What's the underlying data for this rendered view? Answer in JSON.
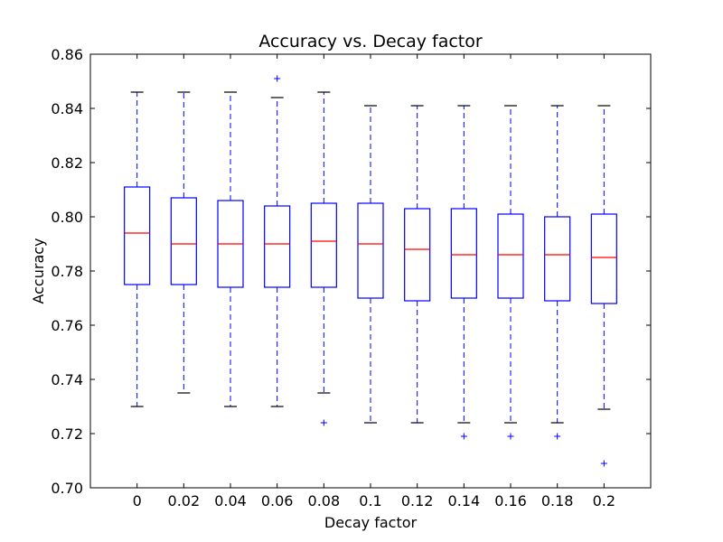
{
  "chart_data": {
    "type": "box",
    "title": "Accuracy vs. Decay factor",
    "xlabel": "Decay factor",
    "ylabel": "Accuracy",
    "ylim": [
      0.7,
      0.86
    ],
    "yticks": [
      "0.70",
      "0.72",
      "0.74",
      "0.76",
      "0.78",
      "0.80",
      "0.82",
      "0.84",
      "0.86"
    ],
    "categories": [
      "0",
      "0.02",
      "0.04",
      "0.06",
      "0.08",
      "0.1",
      "0.12",
      "0.14",
      "0.16",
      "0.18",
      "0.2"
    ],
    "grid": false,
    "colors": {
      "box": "#0000ff",
      "median": "#ff0000",
      "whisker": "#0000ff",
      "cap": "#000000",
      "outlier": "#0000ff"
    },
    "boxes": [
      {
        "whislo": 0.73,
        "q1": 0.775,
        "med": 0.794,
        "q3": 0.811,
        "whishi": 0.846,
        "fliers": []
      },
      {
        "whislo": 0.735,
        "q1": 0.775,
        "med": 0.79,
        "q3": 0.807,
        "whishi": 0.846,
        "fliers": []
      },
      {
        "whislo": 0.73,
        "q1": 0.774,
        "med": 0.79,
        "q3": 0.806,
        "whishi": 0.846,
        "fliers": []
      },
      {
        "whislo": 0.73,
        "q1": 0.774,
        "med": 0.79,
        "q3": 0.804,
        "whishi": 0.844,
        "fliers": [
          0.851
        ]
      },
      {
        "whislo": 0.735,
        "q1": 0.774,
        "med": 0.791,
        "q3": 0.805,
        "whishi": 0.846,
        "fliers": [
          0.724
        ]
      },
      {
        "whislo": 0.724,
        "q1": 0.77,
        "med": 0.79,
        "q3": 0.805,
        "whishi": 0.841,
        "fliers": []
      },
      {
        "whislo": 0.724,
        "q1": 0.769,
        "med": 0.788,
        "q3": 0.803,
        "whishi": 0.841,
        "fliers": []
      },
      {
        "whislo": 0.724,
        "q1": 0.77,
        "med": 0.786,
        "q3": 0.803,
        "whishi": 0.841,
        "fliers": [
          0.719
        ]
      },
      {
        "whislo": 0.724,
        "q1": 0.77,
        "med": 0.786,
        "q3": 0.801,
        "whishi": 0.841,
        "fliers": [
          0.719
        ]
      },
      {
        "whislo": 0.724,
        "q1": 0.769,
        "med": 0.786,
        "q3": 0.8,
        "whishi": 0.841,
        "fliers": [
          0.719
        ]
      },
      {
        "whislo": 0.729,
        "q1": 0.768,
        "med": 0.785,
        "q3": 0.801,
        "whishi": 0.841,
        "fliers": [
          0.709
        ]
      }
    ]
  }
}
